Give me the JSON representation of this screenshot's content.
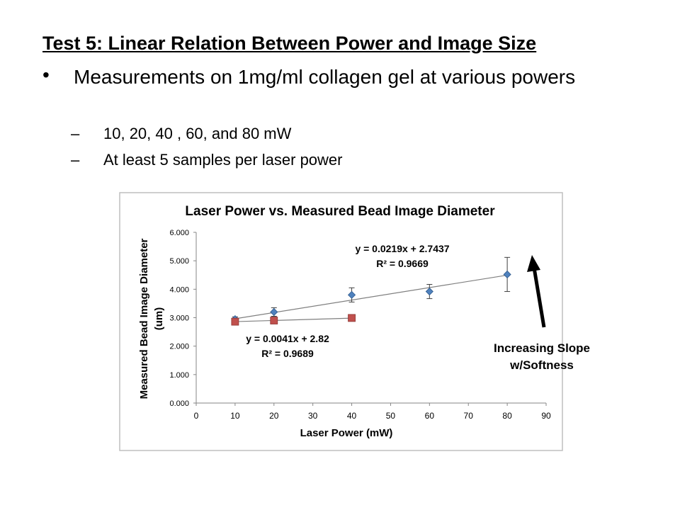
{
  "slide": {
    "title": "Test 5: Linear Relation Between Power and Image Size",
    "bullet": "Measurements on 1mg/ml collagen gel at various powers",
    "bullet_marker": "•",
    "subbullet_marker": "–",
    "subbullets": [
      "10, 20, 40 , 60, and 80 mW",
      "At least 5 samples per laser power"
    ],
    "annotation_line1": "Increasing Slope",
    "annotation_line2": "w/Softness"
  },
  "chart_data": {
    "type": "scatter",
    "title": "Laser Power vs. Measured Bead Image Diameter",
    "xlabel": "Laser Power (mW)",
    "ylabel_line1": "Measured Bead Image Diameter",
    "ylabel_line2": "(um)",
    "xlim": [
      0,
      90
    ],
    "ylim": [
      0,
      6
    ],
    "xticks": [
      "0",
      "10",
      "20",
      "30",
      "40",
      "50",
      "60",
      "70",
      "80",
      "90"
    ],
    "yticks": [
      "0.000",
      "1.000",
      "2.000",
      "3.000",
      "4.000",
      "5.000",
      "6.000"
    ],
    "grid": false,
    "series": [
      {
        "color": "#4f81bd",
        "marker": "diamond",
        "x": [
          10,
          20,
          40,
          60,
          80
        ],
        "y": [
          2.95,
          3.2,
          3.8,
          3.92,
          4.52
        ],
        "error": [
          0.08,
          0.15,
          0.25,
          0.25,
          0.6
        ],
        "trend_slope": 0.0219,
        "trend_intercept": 2.7437,
        "equation": "y = 0.0219x + 2.7437",
        "r2": "R² = 0.9669"
      },
      {
        "color": "#c0504d",
        "marker": "square",
        "x": [
          10,
          20,
          40
        ],
        "y": [
          2.86,
          2.9,
          2.99
        ],
        "trend_slope": 0.0041,
        "trend_intercept": 2.82,
        "equation": "y = 0.0041x + 2.82",
        "r2": "R² = 0.9689"
      }
    ]
  }
}
